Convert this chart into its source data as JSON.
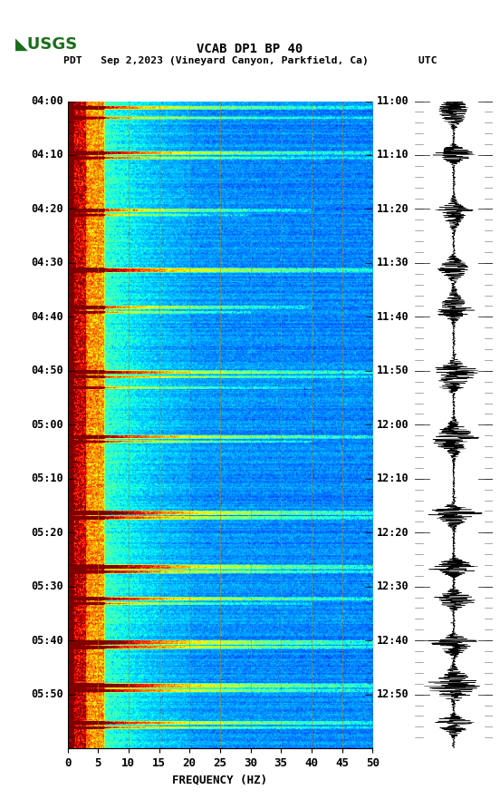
{
  "title_line1": "VCAB DP1 BP 40",
  "title_line2": "PDT   Sep 2,2023 (Vineyard Canyon, Parkfield, Ca)        UTC",
  "freq_min": 0,
  "freq_max": 50,
  "freq_ticks": [
    0,
    5,
    10,
    15,
    20,
    25,
    30,
    35,
    40,
    45,
    50
  ],
  "xlabel": "FREQUENCY (HZ)",
  "left_time_labels": [
    "04:00",
    "04:10",
    "04:20",
    "04:30",
    "04:40",
    "04:50",
    "05:00",
    "05:10",
    "05:20",
    "05:30",
    "05:40",
    "05:50"
  ],
  "right_time_labels": [
    "11:00",
    "11:10",
    "11:20",
    "11:30",
    "11:40",
    "11:50",
    "12:00",
    "12:10",
    "12:20",
    "12:30",
    "12:40",
    "12:50"
  ],
  "n_time_rows": 600,
  "n_freq_cols": 500,
  "background_color": "#ffffff",
  "colormap": "jet",
  "seed": 42,
  "vert_grid_color": "#b8860b",
  "vert_grid_alpha": 0.6,
  "event_rows": [
    5,
    15,
    47,
    52,
    100,
    105,
    155,
    190,
    195,
    250,
    255,
    265,
    310,
    315,
    380,
    385,
    430,
    435,
    460,
    465,
    500,
    505,
    540,
    545,
    575,
    580
  ],
  "event_widths": [
    3,
    2,
    3,
    2,
    3,
    2,
    4,
    3,
    2,
    3,
    2,
    2,
    3,
    2,
    4,
    3,
    4,
    3,
    3,
    2,
    4,
    3,
    4,
    3,
    3,
    2
  ],
  "event_strengths": [
    5,
    4,
    6,
    5,
    5,
    4,
    6,
    5,
    4,
    6,
    5,
    4,
    6,
    5,
    7,
    6,
    7,
    6,
    6,
    5,
    7,
    6,
    7,
    6,
    6,
    5
  ],
  "event_freq_extents": [
    500,
    500,
    500,
    500,
    400,
    300,
    500,
    400,
    300,
    500,
    500,
    400,
    500,
    400,
    500,
    500,
    500,
    500,
    500,
    400,
    500,
    500,
    500,
    500,
    500,
    500
  ]
}
